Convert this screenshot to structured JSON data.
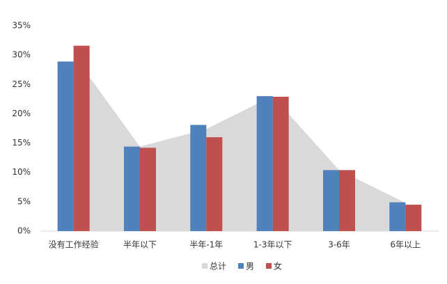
{
  "chart_data": {
    "type": "bar_area",
    "categories": [
      "没有工作经验",
      "半年以下",
      "半年-1年",
      "1-3年以下",
      "3-6年",
      "6年以上"
    ],
    "series": [
      {
        "name": "总计",
        "color": "#d9d9d9",
        "kind": "area",
        "values": [
          30.0,
          14.4,
          17.4,
          23.0,
          10.4,
          4.8
        ]
      },
      {
        "name": "男",
        "color": "#4f81bd",
        "kind": "bar",
        "values": [
          28.9,
          14.4,
          18.1,
          23.0,
          10.4,
          4.9
        ]
      },
      {
        "name": "女",
        "color": "#c0504d",
        "kind": "bar",
        "values": [
          31.6,
          14.2,
          16.0,
          22.9,
          10.4,
          4.5
        ]
      }
    ],
    "ylim": [
      0,
      35
    ],
    "yticks": [
      {
        "value": 0,
        "label": "0%"
      },
      {
        "value": 5,
        "label": "5%"
      },
      {
        "value": 10,
        "label": "10%"
      },
      {
        "value": 15,
        "label": "15%"
      },
      {
        "value": 20,
        "label": "20%"
      },
      {
        "value": 25,
        "label": "25%"
      },
      {
        "value": 30,
        "label": "30%"
      },
      {
        "value": 35,
        "label": "35%"
      }
    ],
    "legend": "bottom"
  }
}
